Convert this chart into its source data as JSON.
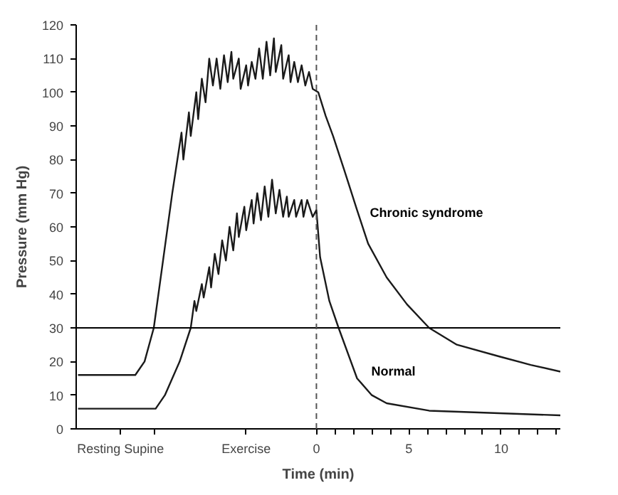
{
  "chart_data": {
    "type": "line",
    "xlabel": "Time (min)",
    "ylabel": "Pressure (mm Hg)",
    "xlim": [
      -13,
      13.2
    ],
    "ylim": [
      0,
      120
    ],
    "xticks": [
      {
        "value": -10.6,
        "label": "Resting Supine"
      },
      {
        "value": -8.8,
        "label": null
      },
      {
        "value": -3.8,
        "label": "Exercise"
      },
      0,
      {
        "value": 1,
        "label": null
      },
      {
        "value": 2,
        "label": null
      },
      {
        "value": 3,
        "label": null
      },
      {
        "value": 4,
        "label": null
      },
      5,
      {
        "value": 6,
        "label": null
      },
      {
        "value": 7,
        "label": null
      },
      {
        "value": 8,
        "label": null
      },
      {
        "value": 9,
        "label": null
      },
      10,
      {
        "value": 11,
        "label": null
      },
      {
        "value": 12,
        "label": null
      },
      {
        "value": 13,
        "label": null
      }
    ],
    "yticks": [
      0,
      10,
      20,
      30,
      40,
      50,
      60,
      70,
      80,
      90,
      100,
      110,
      120
    ],
    "grid": false,
    "marker": "none",
    "line_style": "solid",
    "ref_lines": [
      {
        "axis": "y",
        "value": 30,
        "color": "#000000",
        "line_style": "solid"
      },
      {
        "axis": "x",
        "value": 0,
        "color": "#555555",
        "line_style": "dashed"
      }
    ],
    "series": [
      {
        "name": "Chronic syndrome",
        "color": "#1a1a1a",
        "x": [
          -12.9,
          -9.8,
          -9.3,
          -8.8,
          -8.3,
          -7.8,
          -7.3,
          -7.2,
          -6.9,
          -6.8,
          -6.5,
          -6.4,
          -6.2,
          -6.0,
          -5.8,
          -5.6,
          -5.4,
          -5.2,
          -5.0,
          -4.8,
          -4.6,
          -4.5,
          -4.2,
          -4.1,
          -3.8,
          -3.7,
          -3.5,
          -3.3,
          -3.1,
          -2.9,
          -2.7,
          -2.5,
          -2.3,
          -2.2,
          -1.9,
          -1.8,
          -1.5,
          -1.4,
          -1.2,
          -1.0,
          -0.8,
          -0.6,
          -0.4,
          -0.2,
          0.1,
          0.5,
          0.9,
          1.5,
          2.2,
          2.8,
          3.8,
          4.9,
          6.1,
          7.6,
          9.9,
          11.6,
          13.2
        ],
        "values": [
          16,
          16,
          20,
          30,
          50,
          70,
          88,
          80,
          94,
          87,
          100,
          92,
          104,
          97,
          110,
          102,
          110,
          101,
          111,
          103,
          112,
          104,
          110,
          101,
          108,
          102,
          109,
          104,
          113,
          104,
          115,
          105,
          116,
          106,
          114,
          104,
          111,
          103,
          109,
          103,
          108,
          102,
          106,
          101,
          100,
          93,
          87,
          77,
          65,
          55,
          45,
          37,
          30,
          25,
          21.5,
          19,
          17
        ]
      },
      {
        "name": "Normal",
        "color": "#1a1a1a",
        "x": [
          -12.9,
          -8.7,
          -8.2,
          -7.4,
          -6.8,
          -6.6,
          -6.5,
          -6.2,
          -6.1,
          -5.8,
          -5.7,
          -5.5,
          -5.3,
          -5.1,
          -4.9,
          -4.7,
          -4.5,
          -4.3,
          -4.2,
          -3.9,
          -3.8,
          -3.5,
          -3.4,
          -3.2,
          -3.0,
          -2.8,
          -2.6,
          -2.4,
          -2.2,
          -2.0,
          -1.8,
          -1.6,
          -1.5,
          -1.2,
          -1.1,
          -0.8,
          -0.7,
          -0.5,
          -0.2,
          0,
          0.2,
          0.7,
          1.2,
          2.2,
          3.0,
          3.8,
          6.1,
          13.2
        ],
        "values": [
          6,
          6,
          10,
          20,
          30,
          38,
          35,
          43,
          39,
          48,
          42,
          52,
          46,
          56,
          50,
          60,
          53,
          64,
          57,
          66,
          59,
          68,
          61,
          70,
          62,
          72,
          63,
          74,
          64,
          71,
          63,
          69,
          63,
          68,
          63,
          68,
          63,
          68,
          63,
          65,
          51,
          38,
          30,
          15,
          10,
          7.6,
          5.4,
          4
        ]
      }
    ]
  }
}
